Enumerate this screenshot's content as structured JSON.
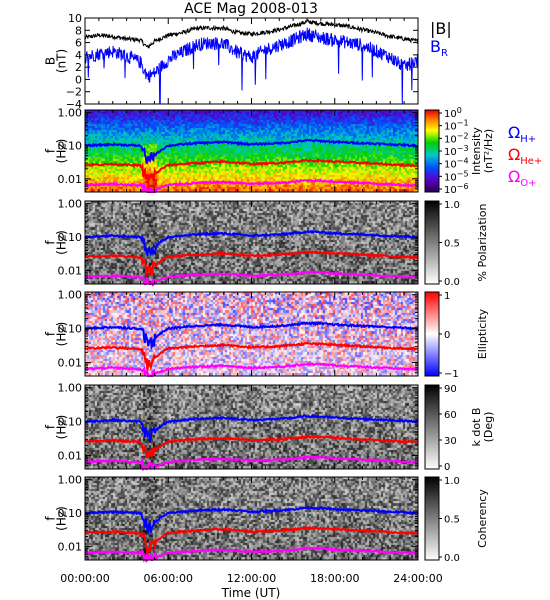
{
  "chart_data": {
    "type": "line",
    "title": "ACE Mag 2008-013",
    "xlabel": "Time (UT)",
    "x_range_hours": [
      0,
      24
    ],
    "x_tick_labels": [
      "00:00:00",
      "06:00:00",
      "12:00:00",
      "18:00:00",
      "24:00:00"
    ],
    "panels": [
      {
        "name": "field",
        "ylabel_lines": [
          "B",
          "(nT)"
        ],
        "ylim": [
          -4,
          10
        ],
        "y_tick_labels": [
          "10",
          "8",
          "6",
          "4",
          "2",
          "0",
          "−2",
          "−4"
        ],
        "y_ticks": [
          10,
          8,
          6,
          4,
          2,
          0,
          -2,
          -4
        ],
        "series": [
          {
            "name": "|B|",
            "color": "#000000",
            "x": [
              0,
              1,
              2,
              3,
              4,
              4.5,
              5,
              6,
              7,
              8,
              9,
              10,
              11,
              12,
              13,
              14,
              15,
              16,
              17,
              18,
              19,
              20,
              21,
              22,
              23,
              24
            ],
            "y": [
              6.8,
              7.2,
              7.0,
              6.6,
              6.4,
              5.2,
              6.2,
              7.2,
              7.6,
              8.3,
              8.4,
              8.3,
              7.6,
              7.4,
              7.7,
              8.1,
              8.7,
              9.4,
              9.1,
              8.9,
              8.6,
              8.1,
              7.6,
              7.0,
              6.6,
              6.2
            ]
          },
          {
            "name": "B_R",
            "color": "#0000ff",
            "x": [
              0,
              1,
              2,
              3,
              4,
              4.5,
              5,
              6,
              7,
              8,
              9,
              10,
              11,
              12,
              13,
              14,
              15,
              16,
              17,
              18,
              19,
              20,
              21,
              22,
              23,
              24
            ],
            "y": [
              3.6,
              4.2,
              4.6,
              3.8,
              2.8,
              0.5,
              1.0,
              3.2,
              4.4,
              5.6,
              6.0,
              5.8,
              4.4,
              3.6,
              4.8,
              5.6,
              6.4,
              7.4,
              6.8,
              6.4,
              6.0,
              5.6,
              4.6,
              3.6,
              2.0,
              3.2
            ]
          }
        ],
        "legend": [
          {
            "text": "|B|",
            "color": "#000000"
          },
          {
            "text": "B",
            "sub": "R",
            "color": "#0000ff"
          }
        ]
      },
      {
        "name": "intensity",
        "type": "heatmap",
        "ylabel_lines": [
          "f",
          "(Hz)"
        ],
        "colorbar_label_lines": [
          "Intensity",
          "(nT²/Hz)"
        ],
        "colorbar_tick_labels": [
          "10",
          "10",
          "10",
          "10",
          "10",
          "10",
          "10"
        ],
        "colorbar_tick_exponents": [
          "0",
          "−1",
          "−2",
          "−3",
          "−4",
          "−5",
          "−6"
        ],
        "colormap": "rainbow"
      },
      {
        "name": "polarization",
        "type": "heatmap",
        "ylabel_lines": [
          "f",
          "(Hz)"
        ],
        "colorbar_label_lines": [
          "% Polarization"
        ],
        "colorbar_tick_labels": [
          "1.0",
          "0.5",
          "0.0"
        ],
        "colormap": "gray"
      },
      {
        "name": "ellipticity",
        "type": "heatmap",
        "ylabel_lines": [
          "f",
          "(Hz)"
        ],
        "colorbar_label_lines": [
          "Ellipticity"
        ],
        "colorbar_tick_labels": [
          "1",
          "0",
          "−1"
        ],
        "colormap": "bwr"
      },
      {
        "name": "kdotb",
        "type": "heatmap",
        "ylabel_lines": [
          "f",
          "(Hz)"
        ],
        "colorbar_label_lines": [
          "k dot B",
          "(Deg)"
        ],
        "colorbar_tick_labels": [
          "90",
          "60",
          "30",
          "0"
        ],
        "colormap": "gray"
      },
      {
        "name": "coherency",
        "type": "heatmap",
        "ylabel_lines": [
          "f",
          "(Hz)"
        ],
        "colorbar_label_lines": [
          "Coherency"
        ],
        "colorbar_tick_labels": [
          "1.0",
          "0.5",
          "0.0"
        ],
        "colormap": "gray"
      }
    ],
    "freq_axis": {
      "scale": "log",
      "ylim": [
        0.004,
        1.2
      ],
      "y_ticks": [
        1.0,
        0.1,
        0.01
      ],
      "y_tick_labels": [
        "1.00",
        "0.10",
        "0.01"
      ]
    },
    "gyro_lines": {
      "x": [
        0,
        2,
        4,
        4.5,
        5,
        6,
        8,
        10,
        12,
        14,
        15,
        16,
        17,
        18,
        20,
        22,
        24
      ],
      "H_plus": [
        0.1,
        0.11,
        0.1,
        0.035,
        0.05,
        0.1,
        0.12,
        0.13,
        0.11,
        0.12,
        0.13,
        0.145,
        0.14,
        0.13,
        0.12,
        0.11,
        0.1
      ],
      "He_plus": [
        0.026,
        0.028,
        0.025,
        0.009,
        0.013,
        0.026,
        0.03,
        0.033,
        0.028,
        0.03,
        0.033,
        0.036,
        0.035,
        0.033,
        0.03,
        0.027,
        0.025
      ],
      "O_plus": [
        0.0065,
        0.007,
        0.0063,
        0.0044,
        0.0045,
        0.0065,
        0.0075,
        0.008,
        0.007,
        0.0075,
        0.008,
        0.009,
        0.0088,
        0.0082,
        0.0075,
        0.0068,
        0.0063
      ],
      "colors": {
        "H_plus": "#0000ff",
        "He_plus": "#ff0000",
        "O_plus": "#ff00ff"
      }
    },
    "gyro_legend": [
      {
        "text": "Ω",
        "sub": "H+",
        "color": "#0000ff"
      },
      {
        "text": "Ω",
        "sub": "He+",
        "color": "#ff0000"
      },
      {
        "text": "Ω",
        "sub": "O+",
        "color": "#ff00ff"
      }
    ]
  }
}
